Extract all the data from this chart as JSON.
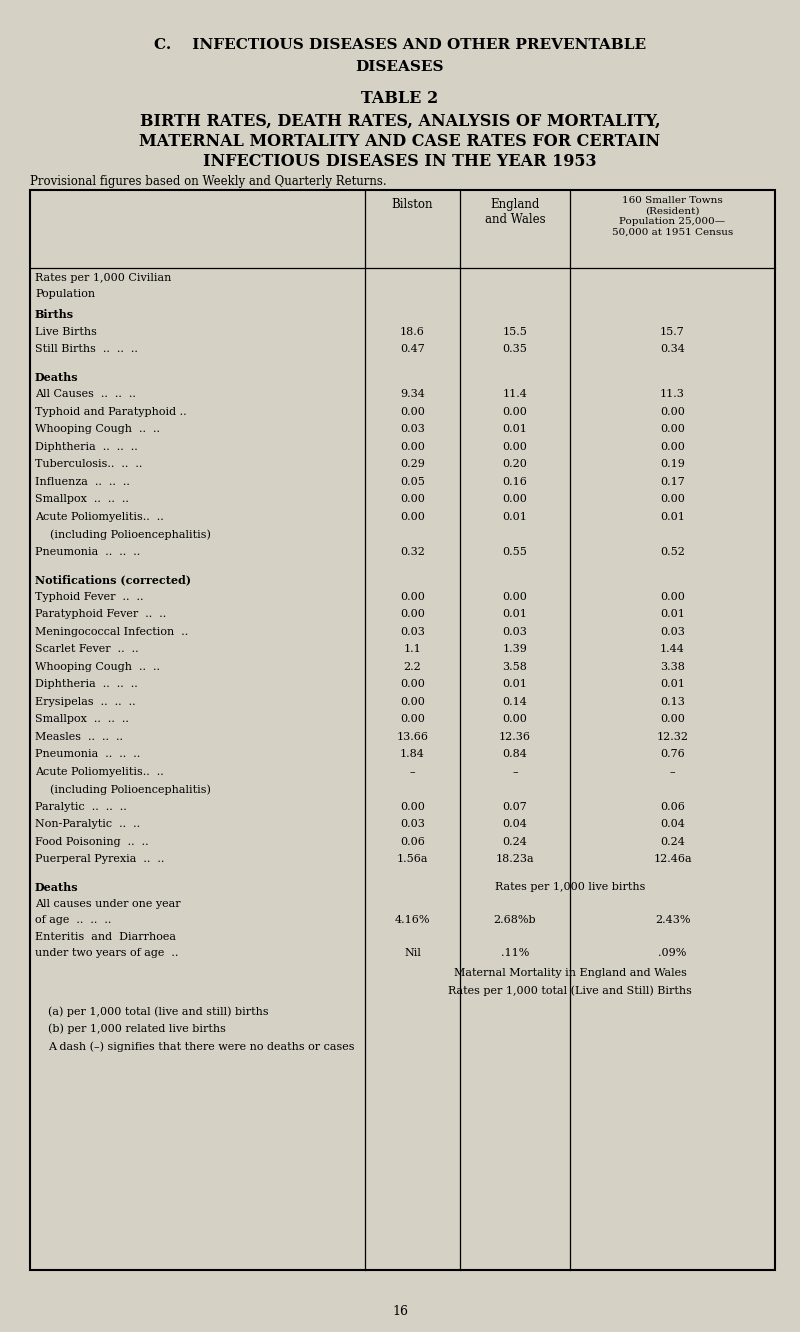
{
  "bg_color": "#d5d1c5",
  "title_line1": "C.    INFECTIOUS DISEASES AND OTHER PREVENTABLE",
  "title_line2": "DISEASES",
  "table_title_line1": "TABLE 2",
  "table_title_line2": "BIRTH RATES, DEATH RATES, ANALYSIS OF MORTALITY,",
  "table_title_line3": "MATERNAL MORTALITY AND CASE RATES FOR CERTAIN",
  "table_title_line4": "INFECTIOUS DISEASES IN THE YEAR 1953",
  "provisional": "Provisional figures based on Weekly and Quarterly Returns.",
  "col_header_1": "Bilston",
  "col_header_2": "England\nand Wales",
  "col_header_3": "160 Smaller Towns\n(Resident)\nPopulation 25,000—\n50,000 at 1951 Census",
  "page_number": "16",
  "table_rows": [
    {
      "type": "subheader",
      "label": "Rates per 1,000 Civilian\nPopulation",
      "vals": [
        "",
        "",
        ""
      ]
    },
    {
      "type": "spacer"
    },
    {
      "type": "bold_header",
      "label": "Births"
    },
    {
      "type": "data",
      "label": "Live Births",
      "vals": [
        "18.6",
        "15.5",
        "15.7"
      ]
    },
    {
      "type": "data",
      "label": "Still Births  ..  ..  ..",
      "vals": [
        "0.47",
        "0.35",
        "0.34"
      ]
    },
    {
      "type": "spacer"
    },
    {
      "type": "bold_header",
      "label": "Deaths"
    },
    {
      "type": "data",
      "label": "All Causes  ..  ..  ..",
      "vals": [
        "9.34",
        "11.4",
        "11.3"
      ]
    },
    {
      "type": "data",
      "label": "Typhoid and Paratyphoid ..",
      "vals": [
        "0.00",
        "0.00",
        "0.00"
      ]
    },
    {
      "type": "data",
      "label": "Whooping Cough  ..  ..",
      "vals": [
        "0.03",
        "0.01",
        "0.00"
      ]
    },
    {
      "type": "data",
      "label": "Diphtheria  ..  ..  ..",
      "vals": [
        "0.00",
        "0.00",
        "0.00"
      ]
    },
    {
      "type": "data",
      "label": "Tuberculosis..  ..  ..",
      "vals": [
        "0.29",
        "0.20",
        "0.19"
      ]
    },
    {
      "type": "data",
      "label": "Influenza  ..  ..  ..",
      "vals": [
        "0.05",
        "0.16",
        "0.17"
      ]
    },
    {
      "type": "data",
      "label": "Smallpox  ..  ..  ..",
      "vals": [
        "0.00",
        "0.00",
        "0.00"
      ]
    },
    {
      "type": "data",
      "label": "Acute Poliomyelitis..  ..",
      "vals": [
        "0.00",
        "0.01",
        "0.01"
      ]
    },
    {
      "type": "continuation",
      "label": "(including Polioencephalitis)"
    },
    {
      "type": "data",
      "label": "Pneumonia  ..  ..  ..",
      "vals": [
        "0.32",
        "0.55",
        "0.52"
      ]
    },
    {
      "type": "spacer"
    },
    {
      "type": "bold_header",
      "label": "Notifications (corrected)"
    },
    {
      "type": "data",
      "label": "Typhoid Fever  ..  ..",
      "vals": [
        "0.00",
        "0.00",
        "0.00"
      ]
    },
    {
      "type": "data",
      "label": "Paratyphoid Fever  ..  ..",
      "vals": [
        "0.00",
        "0.01",
        "0.01"
      ]
    },
    {
      "type": "data",
      "label": "Meningococcal Infection  ..",
      "vals": [
        "0.03",
        "0.03",
        "0.03"
      ]
    },
    {
      "type": "data",
      "label": "Scarlet Fever  ..  ..",
      "vals": [
        "1.1",
        "1.39",
        "1.44"
      ]
    },
    {
      "type": "data",
      "label": "Whooping Cough  ..  ..",
      "vals": [
        "2.2",
        "3.58",
        "3.38"
      ]
    },
    {
      "type": "data",
      "label": "Diphtheria  ..  ..  ..",
      "vals": [
        "0.00",
        "0.01",
        "0.01"
      ]
    },
    {
      "type": "data",
      "label": "Erysipelas  ..  ..  ..",
      "vals": [
        "0.00",
        "0.14",
        "0.13"
      ]
    },
    {
      "type": "data",
      "label": "Smallpox  ..  ..  ..",
      "vals": [
        "0.00",
        "0.00",
        "0.00"
      ]
    },
    {
      "type": "data",
      "label": "Measles  ..  ..  ..",
      "vals": [
        "13.66",
        "12.36",
        "12.32"
      ]
    },
    {
      "type": "data",
      "label": "Pneumonia  ..  ..  ..",
      "vals": [
        "1.84",
        "0.84",
        "0.76"
      ]
    },
    {
      "type": "data",
      "label": "Acute Poliomyelitis..  ..",
      "vals": [
        "–",
        "–",
        "–"
      ]
    },
    {
      "type": "continuation",
      "label": "(including Polioencephalitis)"
    },
    {
      "type": "data",
      "label": "Paralytic  ..  ..  ..",
      "vals": [
        "0.00",
        "0.07",
        "0.06"
      ]
    },
    {
      "type": "data",
      "label": "Non-Paralytic  ..  ..",
      "vals": [
        "0.03",
        "0.04",
        "0.04"
      ]
    },
    {
      "type": "data",
      "label": "Food Poisoning  ..  ..",
      "vals": [
        "0.06",
        "0.24",
        "0.24"
      ]
    },
    {
      "type": "data",
      "label": "Puerperal Pyrexia  ..  ..",
      "vals": [
        "1.56a",
        "18.23a",
        "12.46a"
      ]
    },
    {
      "type": "spacer"
    },
    {
      "type": "deaths_section"
    },
    {
      "type": "all_causes"
    },
    {
      "type": "enteritis"
    },
    {
      "type": "maternal_note"
    },
    {
      "type": "footnotes"
    }
  ]
}
